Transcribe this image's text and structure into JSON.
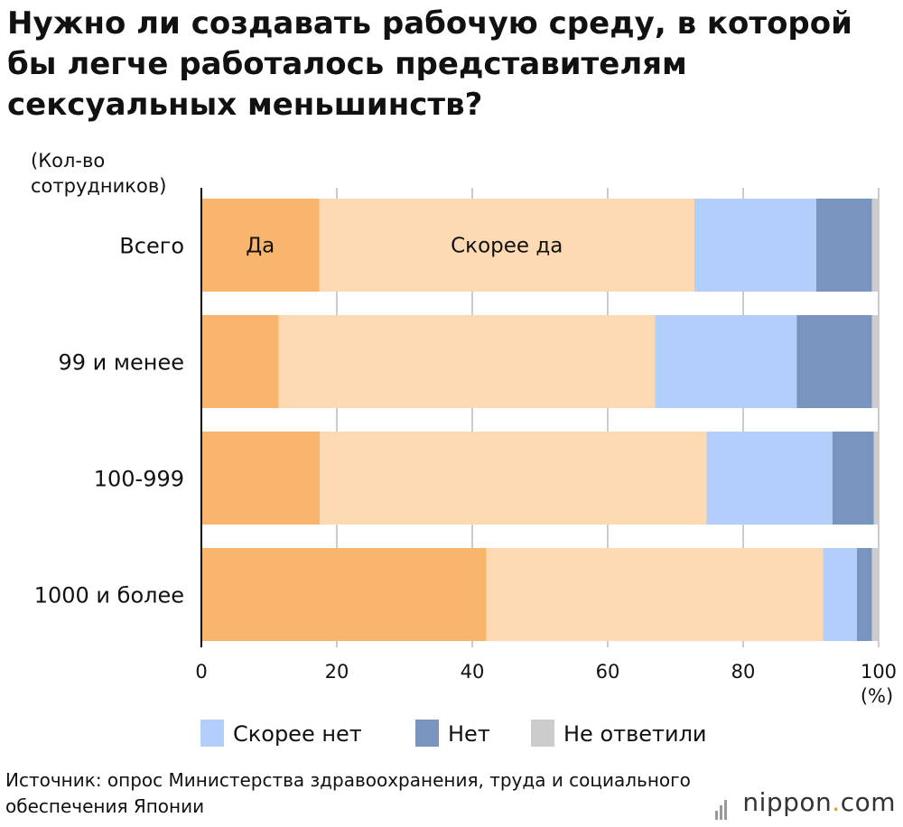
{
  "title": "Нужно ли создавать рабочую среду, в которой бы легче работалось представителям сексуальных меньшинств?",
  "y_axis_label": "(Кол-во сотрудников)",
  "x_unit_label": "(%)",
  "source": "Источник: опрос Министерства здравоохранения, труда и социального обеспечения Японии",
  "logo": {
    "name": "nippon",
    "dot": ".",
    "domain": "com"
  },
  "colors": {
    "yes": "#f9b56b",
    "rather_yes": "#fddab3",
    "rather_no": "#b1cffa",
    "no": "#7795bf",
    "no_answer": "#cccccc",
    "grid": "#cccccc",
    "axis": "#000000"
  },
  "chart_data": {
    "type": "bar",
    "orientation": "horizontal",
    "stacked": true,
    "categories": [
      "Всего",
      "99 и менее",
      "100-999",
      "1000 и более"
    ],
    "series": [
      {
        "name": "Да",
        "color_key": "yes",
        "values": [
          17.4,
          11.4,
          17.5,
          42.1
        ],
        "inline_label_on_first_bar": true
      },
      {
        "name": "Скорее да",
        "color_key": "rather_yes",
        "values": [
          55.4,
          55.6,
          57.1,
          49.7
        ],
        "inline_label_on_first_bar": true
      },
      {
        "name": "Скорее нет",
        "color_key": "rather_no",
        "values": [
          18.0,
          20.9,
          18.6,
          5.0
        ]
      },
      {
        "name": "Нет",
        "color_key": "no",
        "values": [
          8.2,
          11.1,
          6.1,
          2.2
        ]
      },
      {
        "name": "Не ответили",
        "color_key": "no_answer",
        "values": [
          1.0,
          1.0,
          0.7,
          1.0
        ]
      }
    ],
    "xlim": [
      0,
      100
    ],
    "xticks": [
      0,
      20,
      40,
      60,
      80,
      100
    ],
    "grid": true,
    "legend": {
      "placement": "bottom",
      "entries": [
        "Скорее нет",
        "Нет",
        "Не ответили"
      ]
    }
  }
}
